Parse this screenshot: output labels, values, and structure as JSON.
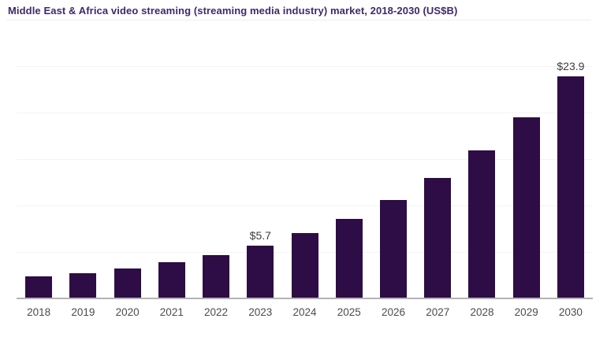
{
  "header": {
    "title": "Middle East & Africa video streaming (streaming media industry) market, 2018-2030 (US$B)"
  },
  "colors": {
    "background": "#ffffff",
    "bar": "#2e0c45",
    "title": "#3e2a66",
    "value_label": "#3d3d3d",
    "tick_label": "#4c4c4c",
    "axis_line": "#b3b3b6",
    "gridline": "#f4f4f4",
    "divider": "#ededed"
  },
  "chart_data": {
    "type": "bar",
    "title": "Middle East & Africa video streaming (streaming media industry) market, 2018-2030 (US$B)",
    "xlabel": "",
    "ylabel": "",
    "categories": [
      "2018",
      "2019",
      "2020",
      "2021",
      "2022",
      "2023",
      "2024",
      "2025",
      "2026",
      "2027",
      "2028",
      "2029",
      "2030"
    ],
    "values": [
      2.4,
      2.7,
      3.2,
      3.9,
      4.7,
      5.7,
      7.0,
      8.6,
      10.6,
      13.0,
      15.9,
      19.5,
      23.9
    ],
    "bar_labels": [
      "",
      "",
      "",
      "",
      "",
      "$5.7",
      "",
      "",
      "",
      "",
      "",
      "",
      "$23.9"
    ],
    "ylim": [
      0,
      25
    ],
    "gridline_values": [
      5,
      10,
      15,
      20,
      25
    ],
    "grid": "horizontal-faint",
    "legend": "none"
  }
}
